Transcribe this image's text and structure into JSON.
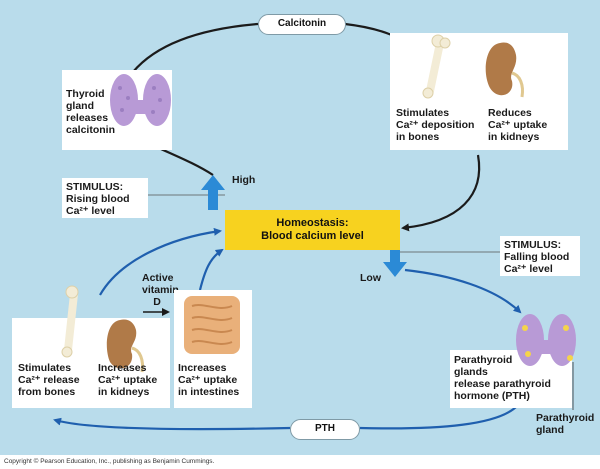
{
  "calcitonin_label": "Calcitonin",
  "pth_label": "PTH",
  "thyroid_text": "Thyroid\ngland\nreleases\ncalcitonin",
  "top_right": {
    "bones_text": "Stimulates\nCa²⁺ deposition\nin bones",
    "kidneys_text": "Reduces\nCa²⁺ uptake\nin kidneys"
  },
  "stimulus_rising": "STIMULUS:\nRising blood\nCa²⁺ level",
  "stimulus_falling": "STIMULUS:\nFalling blood\nCa²⁺ level",
  "homeostasis": {
    "title": "Homeostasis:",
    "subtitle": "Blood calcium level"
  },
  "high_label": "High",
  "low_label": "Low",
  "active_vitamin_label": "Active\nvitamin\nD",
  "bottom_left": {
    "bones_text": "Stimulates\nCa²⁺ release\nfrom bones",
    "kidneys_text": "Increases\nCa²⁺ uptake\nin kidneys",
    "intestines_text": "Increases\nCa²⁺ uptake\nin intestines"
  },
  "parathyroid_text": "Parathyroid\nglands\nrelease parathyroid\nhormone (PTH)",
  "parathyroid_gland_label": "Parathyroid\ngland",
  "copyright": "Copyright © Pearson Education, Inc., publishing as Benjamin Cummings.",
  "colors": {
    "background": "#b9dceb",
    "homeostasis": "#f7d21f",
    "blue_arrow": "#2f7fc6",
    "dark_arrow": "#1b1b1b",
    "up_arrow": "#2b8ad6"
  }
}
